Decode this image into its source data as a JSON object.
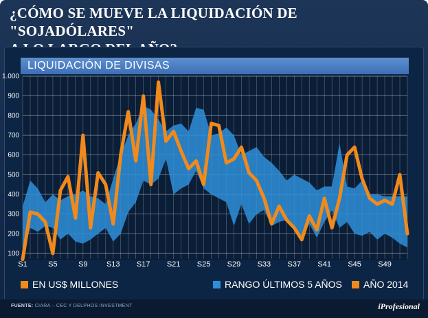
{
  "headline": {
    "line1": "¿CÓMO SE MUEVE LA LIQUIDACIÓN DE \"SOJADÓLARES\"",
    "line2": "A LO LARGO DEL AÑO?"
  },
  "legend": {
    "units": "EN US$ MILLONES",
    "range": "RANGO ÚLTIMOS 5 AÑOS",
    "year": "AÑO 2014"
  },
  "footer": {
    "source_label": "FUENTE:",
    "source_text": "CIARA – CEC Y DELPHOS INVESTMENT",
    "brand": "iProfesional"
  },
  "colors": {
    "range_fill": "#2e8fd8",
    "line": "#f08a1c",
    "background": "#0d2544",
    "grid": "#ffffff"
  },
  "chart_data": {
    "type": "area",
    "title": "LIQUIDACIÓN DE DIVISAS",
    "ylabel": "EN US$ MILLONES",
    "ylim": [
      100,
      1000
    ],
    "yticks": [
      "100",
      "200",
      "300",
      "400",
      "500",
      "600",
      "700",
      "800",
      "900",
      "1.000"
    ],
    "x": [
      1,
      2,
      3,
      4,
      5,
      6,
      7,
      8,
      9,
      10,
      11,
      12,
      13,
      14,
      15,
      16,
      17,
      18,
      19,
      20,
      21,
      22,
      23,
      24,
      25,
      26,
      27,
      28,
      29,
      30,
      31,
      32,
      33,
      34,
      35,
      36,
      37,
      38,
      39,
      40,
      41,
      42,
      43,
      44,
      45,
      46,
      47,
      48,
      49,
      50,
      51,
      52
    ],
    "xticks": [
      "S1",
      "S5",
      "S9",
      "S13",
      "S17",
      "S21",
      "S25",
      "S29",
      "S33",
      "S37",
      "S41",
      "S45",
      "S49"
    ],
    "series": [
      {
        "name": "RANGO ÚLTIMOS 5 AÑOS (máximo)",
        "values": [
          340,
          470,
          430,
          360,
          400,
          370,
          390,
          400,
          420,
          390,
          380,
          350,
          480,
          600,
          700,
          760,
          850,
          830,
          780,
          720,
          750,
          760,
          720,
          840,
          830,
          700,
          710,
          740,
          700,
          600,
          620,
          640,
          590,
          560,
          520,
          470,
          500,
          480,
          460,
          420,
          440,
          440,
          660,
          440,
          430,
          470,
          400,
          400,
          390,
          390,
          390,
          390
        ]
      },
      {
        "name": "RANGO ÚLTIMOS 5 AÑOS (mínimo)",
        "values": [
          100,
          230,
          210,
          240,
          230,
          170,
          200,
          160,
          150,
          170,
          200,
          230,
          160,
          200,
          310,
          360,
          470,
          450,
          480,
          580,
          400,
          430,
          450,
          520,
          430,
          400,
          380,
          360,
          240,
          350,
          250,
          300,
          320,
          240,
          260,
          270,
          220,
          190,
          250,
          180,
          260,
          320,
          230,
          260,
          200,
          190,
          210,
          170,
          200,
          180,
          150,
          130
        ]
      },
      {
        "name": "AÑO 2014",
        "values": [
          70,
          310,
          300,
          260,
          100,
          420,
          490,
          280,
          700,
          230,
          510,
          450,
          250,
          600,
          820,
          570,
          900,
          450,
          970,
          670,
          720,
          620,
          530,
          570,
          450,
          760,
          750,
          560,
          580,
          640,
          510,
          470,
          380,
          250,
          340,
          270,
          230,
          170,
          290,
          220,
          380,
          230,
          380,
          600,
          640,
          480,
          380,
          350,
          370,
          350,
          500,
          200
        ]
      }
    ]
  }
}
